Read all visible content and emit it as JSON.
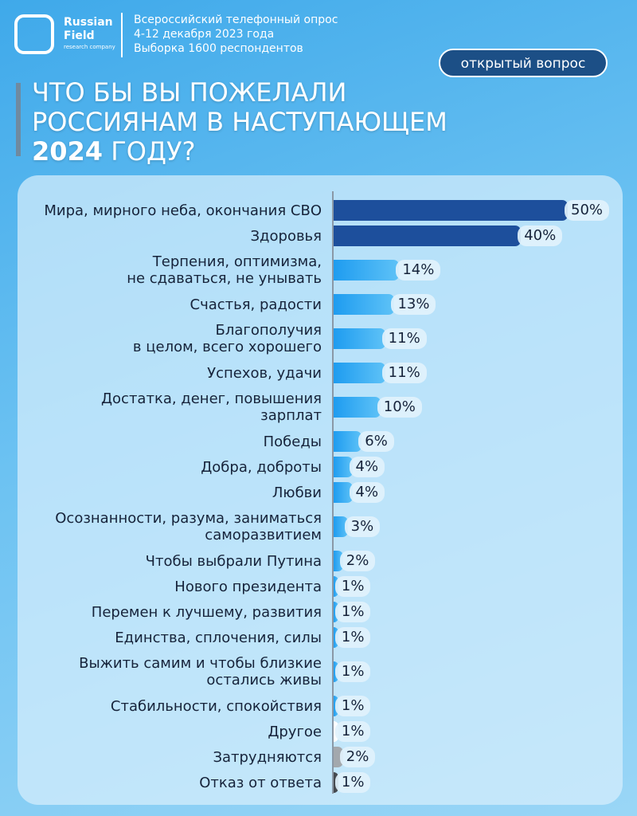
{
  "header": {
    "logo": [
      "Russian",
      "Field",
      "research company"
    ],
    "survey": [
      "Всероссийский телефонный опрос",
      "4-12 декабря 2023 года",
      "Выборка 1600 респондентов"
    ],
    "badge": "открытый вопрос"
  },
  "chart_data": {
    "type": "bar",
    "orientation": "horizontal",
    "title": [
      "ЧТО БЫ ВЫ ПОЖЕЛАЛИ",
      "РОССИЯНАМ В НАСТУПАЮЩЕМ",
      "2024",
      "ГОДУ?"
    ],
    "categories": [
      "Мира, мирного неба, окончания СВО",
      "Здоровья",
      "Терпения, оптимизма,\nне сдаваться, не унывать",
      "Счастья, радости",
      "Благополучия\nв целом, всего хорошего",
      "Успехов, удачи",
      "Достатка, денег, повышения\nзарплат",
      "Победы",
      "Добра, доброты",
      "Любви",
      "Осознанности, разума, заниматься\nсаморазвитием",
      "Чтобы выбрали Путина",
      "Нового президента",
      "Перемен к лучшему, развития",
      "Единства, сплочения, силы",
      "Выжить самим и чтобы близкие\nостались живы",
      "Стабильности, спокойствия",
      "Другое",
      "Затрудняются",
      "Отказ от ответа"
    ],
    "values": [
      50,
      40,
      14,
      13,
      11,
      11,
      10,
      6,
      4,
      4,
      3,
      2,
      1,
      1,
      1,
      1,
      1,
      1,
      2,
      1
    ],
    "value_labels": [
      "50%",
      "40%",
      "14%",
      "13%",
      "11%",
      "11%",
      "10%",
      "6%",
      "4%",
      "4%",
      "3%",
      "2%",
      "1%",
      "1%",
      "1%",
      "1%",
      "1%",
      "1%",
      "2%",
      "1%"
    ],
    "colors": [
      "#1d4f9c",
      "#1d4f9c",
      "#1e9cf0",
      "#1e9cf0",
      "#1e9cf0",
      "#1e9cf0",
      "#1e9cf0",
      "#1e9cf0",
      "#1e9cf0",
      "#1e9cf0",
      "#1e9cf0",
      "#1e9cf0",
      "#1e9cf0",
      "#1e9cf0",
      "#1e9cf0",
      "#1e9cf0",
      "#1e9cf0",
      "#ffffff",
      "#a3a8ad",
      "#45494f"
    ],
    "xlim": [
      0,
      50
    ]
  }
}
